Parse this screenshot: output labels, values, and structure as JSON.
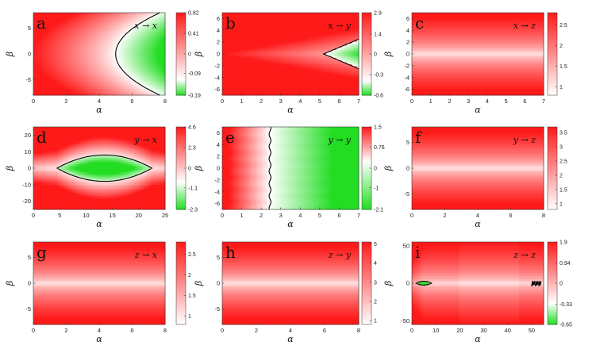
{
  "figure": {
    "colors": {
      "high": "#ff1a1a",
      "mid": "#ffffff",
      "low": "#22dd22",
      "contour": "#000000",
      "frame": "#333333"
    }
  },
  "chart_data": [
    {
      "id": "a",
      "type": "heatmap",
      "label": "a",
      "mapping": "x → x",
      "xlabel": "α",
      "ylabel": "β",
      "xlim": [
        0,
        8
      ],
      "ylim": [
        -8,
        8
      ],
      "xticks": [
        "0",
        "2",
        "4",
        "6",
        "8"
      ],
      "yticks": [
        "5",
        "0",
        "-5"
      ],
      "xtick_vals": [
        0,
        2,
        4,
        6,
        8
      ],
      "ytick_vals": [
        5,
        0,
        -5
      ],
      "colorbar": {
        "min": -0.19,
        "max": 0.82,
        "ticks": [
          "0.82",
          "0.41",
          "0",
          "-0.09",
          "-0.19"
        ]
      },
      "zero_contour": {
        "shape": "parabola",
        "alpha_at_beta0": 5.0,
        "alpha_at_beta_edge": 7.7
      },
      "field": "x_to_x"
    },
    {
      "id": "b",
      "type": "heatmap",
      "label": "b",
      "mapping": "x → y",
      "xlabel": "α",
      "ylabel": "β",
      "xlim": [
        0,
        7
      ],
      "ylim": [
        -7,
        7
      ],
      "xticks": [
        "0",
        "1",
        "2",
        "3",
        "4",
        "5",
        "6",
        "7"
      ],
      "yticks": [
        "6",
        "4",
        "2",
        "0",
        "-2",
        "-4",
        "-6"
      ],
      "xtick_vals": [
        0,
        1,
        2,
        3,
        4,
        5,
        6,
        7
      ],
      "ytick_vals": [
        6,
        4,
        2,
        0,
        -2,
        -4,
        -6
      ],
      "colorbar": {
        "min": -0.6,
        "max": 2.9,
        "ticks": [
          "2.9",
          "1.4",
          "0",
          "-0.3",
          "-0.6"
        ]
      },
      "zero_contour": {
        "shape": "wedge",
        "alpha_tip": 5.2,
        "beta_at_right_edge": 2.5
      },
      "field": "x_to_y"
    },
    {
      "id": "c",
      "type": "heatmap",
      "label": "c",
      "mapping": "x → z",
      "xlabel": "α",
      "ylabel": "β",
      "xlim": [
        0,
        7
      ],
      "ylim": [
        -7,
        7
      ],
      "xticks": [
        "0",
        "1",
        "2",
        "3",
        "4",
        "5",
        "6",
        "7"
      ],
      "yticks": [
        "6",
        "4",
        "2",
        "0",
        "-2",
        "-4",
        "-6"
      ],
      "xtick_vals": [
        0,
        1,
        2,
        3,
        4,
        5,
        6,
        7
      ],
      "ytick_vals": [
        6,
        4,
        2,
        0,
        -2,
        -4,
        -6
      ],
      "colorbar": {
        "min": 0.8,
        "max": 2.8,
        "ticks": [
          "2.5",
          "2",
          "1.5",
          "1"
        ]
      },
      "field": "band"
    },
    {
      "id": "d",
      "type": "heatmap",
      "label": "d",
      "mapping": "y → x",
      "xlabel": "α",
      "ylabel": "β",
      "xlim": [
        0,
        25
      ],
      "ylim": [
        -25,
        25
      ],
      "xticks": [
        "0",
        "5",
        "10",
        "15",
        "20",
        "25"
      ],
      "yticks": [
        "20",
        "10",
        "0",
        "-10",
        "-20"
      ],
      "xtick_vals": [
        0,
        5,
        10,
        15,
        20,
        25
      ],
      "ytick_vals": [
        20,
        10,
        0,
        -10,
        -20
      ],
      "colorbar": {
        "min": -2.3,
        "max": 4.6,
        "ticks": [
          "4.6",
          "2.3",
          "0",
          "-1.1",
          "-2.3"
        ]
      },
      "zero_contour": {
        "shape": "lens",
        "alpha_range": [
          4.5,
          22.5
        ],
        "beta_halfwidth": 8
      },
      "field": "y_to_x"
    },
    {
      "id": "e",
      "type": "heatmap",
      "label": "e",
      "mapping": "y → y",
      "xlabel": "α",
      "ylabel": "β",
      "xlim": [
        0,
        7
      ],
      "ylim": [
        -7,
        7
      ],
      "xticks": [
        "0",
        "1",
        "2",
        "3",
        "4",
        "5",
        "6",
        "7"
      ],
      "yticks": [
        "6",
        "4",
        "2",
        "0",
        "-2",
        "-4",
        "-6"
      ],
      "xtick_vals": [
        0,
        1,
        2,
        3,
        4,
        5,
        6,
        7
      ],
      "ytick_vals": [
        6,
        4,
        2,
        0,
        -2,
        -4,
        -6
      ],
      "colorbar": {
        "min": -2.1,
        "max": 1.5,
        "ticks": [
          "1.5",
          "0.76",
          "0",
          "-1",
          "-2.1"
        ]
      },
      "zero_contour": {
        "shape": "vertical",
        "alpha": 2.45
      },
      "field": "y_to_y"
    },
    {
      "id": "f",
      "type": "heatmap",
      "label": "f",
      "mapping": "y → z",
      "xlabel": "α",
      "ylabel": "β",
      "xlim": [
        0,
        8
      ],
      "ylim": [
        -8,
        8
      ],
      "xticks": [
        "0",
        "2",
        "4",
        "6",
        "8"
      ],
      "yticks": [
        "5",
        "0",
        "-5"
      ],
      "xtick_vals": [
        0,
        2,
        4,
        6,
        8
      ],
      "ytick_vals": [
        5,
        0,
        -5
      ],
      "colorbar": {
        "min": 0.8,
        "max": 3.7,
        "ticks": [
          "3.5",
          "3",
          "2.5",
          "2",
          "1.5",
          "1"
        ]
      },
      "field": "band"
    },
    {
      "id": "g",
      "type": "heatmap",
      "label": "g",
      "mapping": "z → x",
      "xlabel": "α",
      "ylabel": "β",
      "xlim": [
        0,
        8
      ],
      "ylim": [
        -8,
        8
      ],
      "xticks": [
        "0",
        "2",
        "4",
        "6",
        "8"
      ],
      "yticks": [
        "5",
        "0",
        "-5"
      ],
      "xtick_vals": [
        0,
        2,
        4,
        6,
        8
      ],
      "ytick_vals": [
        5,
        0,
        -5
      ],
      "colorbar": {
        "min": 0.8,
        "max": 2.8,
        "ticks": [
          "2.5",
          "2",
          "1.5",
          "1"
        ]
      },
      "field": "band"
    },
    {
      "id": "h",
      "type": "heatmap",
      "label": "h",
      "mapping": "z → y",
      "xlabel": "α",
      "ylabel": "β",
      "xlim": [
        0,
        8
      ],
      "ylim": [
        -8,
        8
      ],
      "xticks": [
        "0",
        "2",
        "4",
        "6",
        "8"
      ],
      "yticks": [
        "5",
        "0",
        "-5"
      ],
      "xtick_vals": [
        0,
        2,
        4,
        6,
        8
      ],
      "ytick_vals": [
        5,
        0,
        -5
      ],
      "colorbar": {
        "min": 0.8,
        "max": 5.1,
        "ticks": [
          "5",
          "4",
          "3",
          "2",
          "1"
        ]
      },
      "field": "band"
    },
    {
      "id": "i",
      "type": "heatmap",
      "label": "i",
      "mapping": "z → z",
      "xlabel": "α",
      "ylabel": "β",
      "xlim": [
        0,
        55
      ],
      "ylim": [
        -55,
        55
      ],
      "xticks": [
        "0",
        "10",
        "20",
        "30",
        "40",
        "50"
      ],
      "yticks": [
        "50",
        "0",
        "-50"
      ],
      "xtick_vals": [
        0,
        10,
        20,
        30,
        40,
        50
      ],
      "ytick_vals": [
        50,
        0,
        -50
      ],
      "colorbar": {
        "min": -0.65,
        "max": 1.9,
        "ticks": [
          "1.9",
          "0.94",
          "0",
          "-0.33",
          "-0.65"
        ]
      },
      "zero_contour": {
        "shape": "lens-small",
        "alpha_range": [
          2,
          8
        ]
      },
      "field": "z_to_z"
    }
  ]
}
